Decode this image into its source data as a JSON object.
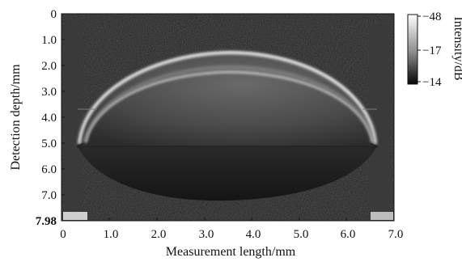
{
  "image": {
    "kind": "oct-cross-section-scan",
    "subject": "dome-shaped bright elliptical structure in grayscale scan with a horizontal double-headed arrow across its base"
  },
  "axes": {
    "x": {
      "title": "Measurement length/mm",
      "ticks": [
        "0",
        "1.0",
        "2.0",
        "3.0",
        "4.0",
        "5.0",
        "6.0",
        "7.0"
      ],
      "range": [
        0,
        7.0
      ]
    },
    "y": {
      "title": "Detection depth/mm",
      "ticks": [
        "0",
        "1.0",
        "2.0",
        "3.0",
        "4.0",
        "5.0",
        "6.0",
        "7.0",
        "7.98"
      ],
      "range": [
        0,
        7.98
      ]
    }
  },
  "colorbar": {
    "title": "Intensity/dB",
    "ticks": [
      "−48",
      "−17",
      "−14"
    ]
  },
  "colors": {
    "scan_background": "#1c1c1c",
    "dome_bright": "#e6e6e6",
    "dome_fill": "#5a5a5a",
    "arrow": "#222222"
  }
}
